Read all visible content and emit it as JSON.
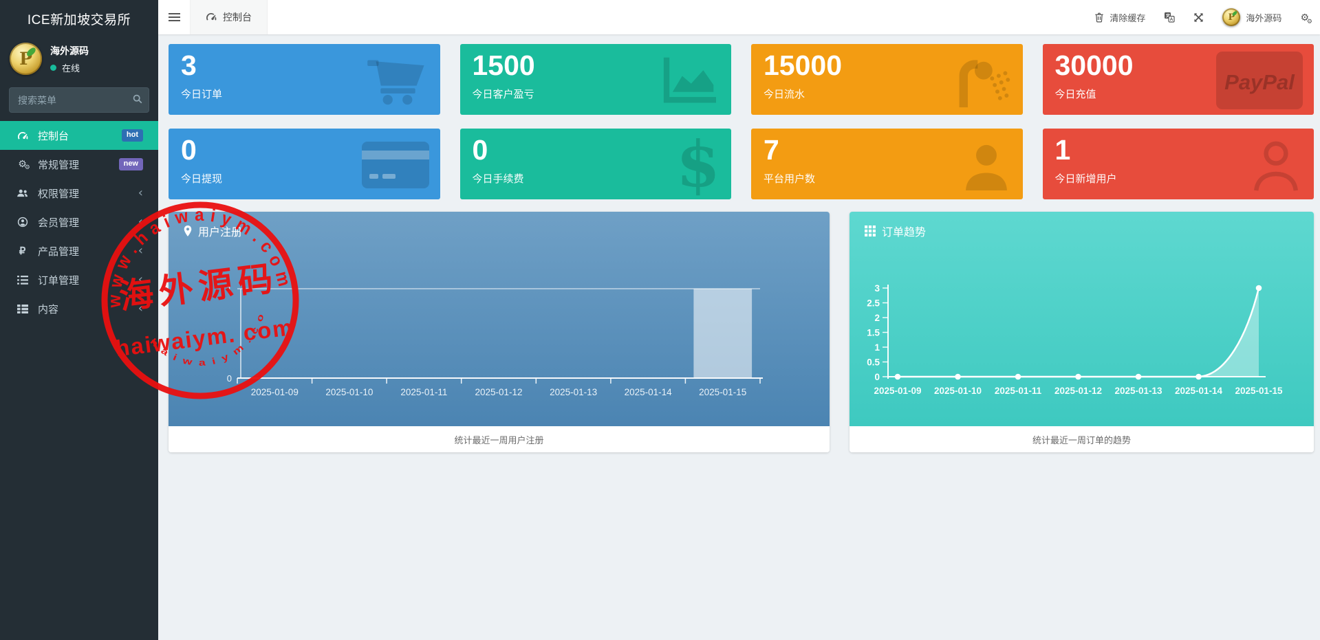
{
  "app": {
    "title": "ICE新加坡交易所"
  },
  "sidebar": {
    "user": {
      "name": "海外源码",
      "status_label": "在线"
    },
    "search": {
      "placeholder": "搜索菜单"
    },
    "menu": [
      {
        "id": "dashboard",
        "label": "控制台",
        "icon": "dashboard-icon",
        "active": true,
        "badge": {
          "label": "hot",
          "color": "#2d6fb3"
        }
      },
      {
        "id": "general",
        "label": "常规管理",
        "icon": "cogs-icon",
        "active": false,
        "badge": {
          "label": "new",
          "color": "#7266ba"
        }
      },
      {
        "id": "auth",
        "label": "权限管理",
        "icon": "users-icon",
        "active": false,
        "chevron": true
      },
      {
        "id": "member",
        "label": "会员管理",
        "icon": "user-circle-icon",
        "active": false,
        "chevron": true
      },
      {
        "id": "product",
        "label": "产品管理",
        "icon": "ruble-icon",
        "active": false,
        "chevron": true
      },
      {
        "id": "order",
        "label": "订单管理",
        "icon": "list-icon",
        "active": false,
        "chevron": true
      },
      {
        "id": "content",
        "label": "内容",
        "icon": "th-list-icon",
        "active": false,
        "chevron": true
      }
    ]
  },
  "navbar": {
    "tab": {
      "label": "控制台",
      "icon": "dashboard-icon"
    },
    "actions": [
      {
        "id": "clear-cache",
        "label": "清除缓存",
        "icon": "trash-icon"
      },
      {
        "id": "language",
        "label": "",
        "icon": "language-icon"
      },
      {
        "id": "fullscreen",
        "label": "",
        "icon": "fullscreen-icon"
      },
      {
        "id": "user-menu",
        "label": "海外源码",
        "icon": "avatar"
      },
      {
        "id": "settings",
        "label": "",
        "icon": "cogs-icon"
      }
    ]
  },
  "stats": [
    {
      "id": "today-orders",
      "value": "3",
      "label": "今日订单",
      "color": "#3a97dc",
      "icon": "cart-icon"
    },
    {
      "id": "today-pnl",
      "value": "1500",
      "label": "今日客户盈亏",
      "color": "#1abc9c",
      "icon": "area-chart-icon"
    },
    {
      "id": "today-flow",
      "value": "15000",
      "label": "今日流水",
      "color": "#f39c12",
      "icon": "shower-icon"
    },
    {
      "id": "today-recharge",
      "value": "30000",
      "label": "今日充值",
      "color": "#e74c3c",
      "icon": "paypal-icon"
    },
    {
      "id": "today-withdraw",
      "value": "0",
      "label": "今日提现",
      "color": "#3a97dc",
      "icon": "credit-card-icon"
    },
    {
      "id": "today-fee",
      "value": "0",
      "label": "今日手续费",
      "color": "#1abc9c",
      "icon": "dollar-icon"
    },
    {
      "id": "platform-users",
      "value": "7",
      "label": "平台用户数",
      "color": "#f39c12",
      "icon": "user-icon"
    },
    {
      "id": "new-users",
      "value": "1",
      "label": "今日新增用户",
      "color": "#e74c3c",
      "icon": "user-outline-icon"
    }
  ],
  "chart_data": [
    {
      "type": "bar",
      "title": "用户注册",
      "icon": "map-pin-icon",
      "categories": [
        "2025-01-09",
        "2025-01-10",
        "2025-01-11",
        "2025-01-12",
        "2025-01-13",
        "2025-01-14",
        "2025-01-15"
      ],
      "values": [
        0,
        0,
        0,
        0,
        0,
        0,
        1
      ],
      "ylim": [
        0,
        1
      ],
      "visible_yticks": [
        1,
        0
      ],
      "grid_value": 1,
      "legend": false,
      "footer": "统计最近一周用户注册",
      "bar_color": "rgba(255,255,255,0.55)",
      "bg_top": "#6fa0c6",
      "bg_bottom": "#4b84b2"
    },
    {
      "type": "area",
      "title": "订单趋势",
      "icon": "grid-icon",
      "categories": [
        "2025-01-09",
        "2025-01-10",
        "2025-01-11",
        "2025-01-12",
        "2025-01-13",
        "2025-01-14",
        "2025-01-15"
      ],
      "values": [
        0,
        0,
        0,
        0,
        0,
        0,
        3
      ],
      "yticks": [
        0,
        0.5,
        1,
        1.5,
        2,
        2.5,
        3
      ],
      "ylim": [
        0,
        3
      ],
      "legend": false,
      "footer": "统计最近一周订单的趋势",
      "line_color": "#ffffff",
      "fill_color": "rgba(255,255,255,0.38)",
      "bg_top": "#5ed8d0",
      "bg_bottom": "#3ec9c0"
    }
  ],
  "watermark": {
    "color": "#ea1010",
    "arc_top": "w w w . h a i w a i y m . c o m",
    "center_text": "海外源码",
    "main_text": "haiwaiym. com",
    "arc_bottom": "h a i w a i y m . c o m"
  }
}
